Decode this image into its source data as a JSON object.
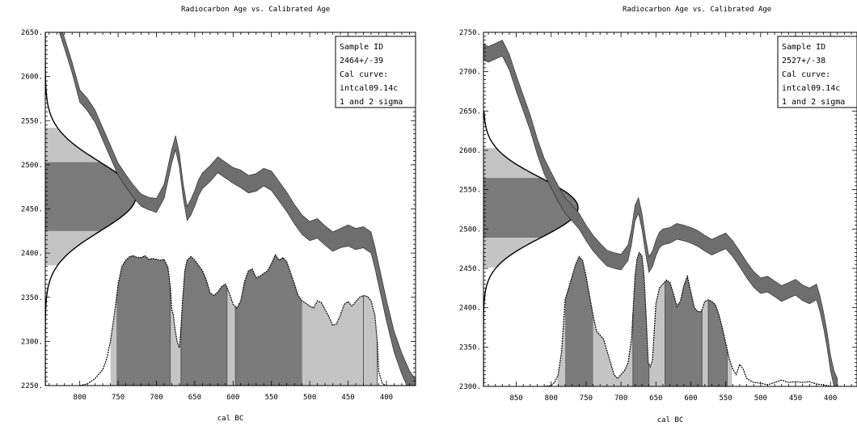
{
  "chart_data": [
    {
      "type": "area",
      "title": "Radiocarbon Age vs. Calibrated Age",
      "xlabel": "cal BC",
      "ylabel": "",
      "xlim": [
        845,
        362
      ],
      "ylim": [
        2250,
        2650
      ],
      "xticks": [
        800,
        750,
        700,
        650,
        600,
        550,
        500,
        450,
        400
      ],
      "yticks": [
        2250,
        2300,
        2350,
        2400,
        2450,
        2500,
        2550,
        2600,
        2650
      ],
      "ytick_labels": [
        "2250.",
        "2300.",
        "2350.",
        "2400.",
        "2450.",
        "2500.",
        "2550.",
        "2600.",
        "2650."
      ],
      "legend": {
        "placement": "top-right",
        "lines": [
          "Sample ID",
          "2464+/-39",
          "Cal curve:",
          "intcal09.14c",
          "1 and 2 sigma"
        ]
      },
      "radiocarbon_age": {
        "mean": 2464,
        "sigma": 39
      },
      "calibration_curve": {
        "x": [
          845,
          840,
          830,
          820,
          810,
          800,
          790,
          780,
          770,
          760,
          750,
          740,
          730,
          720,
          710,
          700,
          690,
          680,
          675,
          670,
          665,
          660,
          655,
          650,
          645,
          640,
          630,
          620,
          610,
          600,
          590,
          580,
          570,
          560,
          550,
          540,
          530,
          520,
          510,
          500,
          490,
          480,
          470,
          460,
          450,
          440,
          430,
          420,
          415,
          410,
          400,
          390,
          380,
          370,
          362
        ],
        "mid": [
          2705,
          2690,
          2665,
          2638,
          2610,
          2578,
          2568,
          2555,
          2535,
          2515,
          2495,
          2482,
          2470,
          2460,
          2456,
          2454,
          2470,
          2510,
          2525,
          2505,
          2470,
          2445,
          2452,
          2462,
          2474,
          2482,
          2490,
          2500,
          2494,
          2488,
          2484,
          2478,
          2480,
          2486,
          2482,
          2470,
          2458,
          2444,
          2432,
          2425,
          2428,
          2420,
          2413,
          2417,
          2420,
          2416,
          2418,
          2412,
          2395,
          2375,
          2335,
          2300,
          2275,
          2255,
          2245
        ],
        "halfwidth": [
          6,
          6,
          6,
          6,
          6,
          7,
          7,
          7,
          7,
          7,
          7,
          7,
          7,
          7,
          7,
          8,
          8,
          8,
          8,
          8,
          8,
          8,
          9,
          9,
          9,
          9,
          9,
          9,
          9,
          9,
          10,
          10,
          10,
          10,
          11,
          11,
          11,
          11,
          11,
          11,
          11,
          11,
          11,
          11,
          12,
          12,
          12,
          12,
          12,
          12,
          12,
          12,
          12,
          12,
          12
        ]
      },
      "probability_distribution": {
        "x": [
          800,
          790,
          780,
          770,
          765,
          760,
          755,
          752,
          750,
          745,
          740,
          735,
          730,
          725,
          720,
          715,
          710,
          705,
          700,
          695,
          690,
          685,
          682,
          680,
          678,
          676,
          673,
          670,
          668,
          666,
          663,
          660,
          655,
          650,
          645,
          640,
          635,
          630,
          625,
          620,
          615,
          610,
          605,
          600,
          595,
          590,
          585,
          580,
          575,
          570,
          565,
          560,
          555,
          550,
          545,
          540,
          535,
          530,
          525,
          520,
          515,
          510,
          505,
          500,
          495,
          490,
          485,
          480,
          475,
          470,
          465,
          460,
          455,
          450,
          445,
          440,
          435,
          430,
          425,
          420,
          415,
          412,
          410,
          405,
          400,
          395,
          390,
          380,
          370
        ],
        "y": [
          2250,
          2252,
          2258,
          2268,
          2280,
          2300,
          2330,
          2350,
          2365,
          2385,
          2392,
          2396,
          2397,
          2395,
          2395,
          2397,
          2393,
          2394,
          2393,
          2392,
          2393,
          2384,
          2362,
          2336,
          2330,
          2315,
          2300,
          2293,
          2315,
          2345,
          2380,
          2392,
          2396,
          2392,
          2386,
          2380,
          2370,
          2355,
          2352,
          2356,
          2362,
          2365,
          2355,
          2342,
          2338,
          2346,
          2368,
          2380,
          2382,
          2372,
          2374,
          2377,
          2380,
          2388,
          2398,
          2392,
          2395,
          2390,
          2378,
          2365,
          2352,
          2346,
          2343,
          2340,
          2338,
          2346,
          2344,
          2336,
          2328,
          2318,
          2320,
          2330,
          2342,
          2345,
          2340,
          2345,
          2350,
          2352,
          2351,
          2346,
          2330,
          2300,
          2265,
          2252,
          2250,
          2250,
          2250,
          2250,
          2250
        ],
        "one_sigma_ranges": [
          [
            752,
            682
          ],
          [
            668,
            608
          ],
          [
            597,
            510
          ]
        ],
        "two_sigma_ranges": [
          [
            760,
            412
          ]
        ],
        "marker_lines": [
          682,
          668,
          608,
          597,
          430,
          412
        ]
      },
      "gaussian": {
        "mean": 2464,
        "sigma": 39,
        "extent": [
          2250,
          2650
        ],
        "one_sigma_band": [
          2425,
          2503
        ],
        "two_sigma_band": [
          2386,
          2542
        ]
      }
    },
    {
      "type": "area",
      "title": "Radiocarbon Age vs. Calibrated Age",
      "xlabel": "cal BC",
      "ylabel": "",
      "xlim": [
        897,
        362
      ],
      "ylim": [
        2300,
        2750
      ],
      "xticks": [
        850,
        800,
        750,
        700,
        650,
        600,
        550,
        500,
        450,
        400
      ],
      "yticks": [
        2300,
        2350,
        2400,
        2450,
        2500,
        2550,
        2600,
        2650,
        2700,
        2750
      ],
      "ytick_labels": [
        "2300.",
        "2350.",
        "2400.",
        "2450.",
        "2500.",
        "2550.",
        "2600.",
        "2650.",
        "2700.",
        "2750."
      ],
      "legend": {
        "placement": "top-right",
        "lines": [
          "Sample ID",
          "2527+/-38",
          "Cal curve:",
          "intcal09.14c",
          "1 and 2 sigma"
        ]
      },
      "radiocarbon_age": {
        "mean": 2527,
        "sigma": 38
      },
      "calibration_curve": {
        "x": [
          897,
          890,
          880,
          870,
          860,
          850,
          840,
          830,
          820,
          810,
          800,
          790,
          780,
          770,
          760,
          750,
          740,
          730,
          720,
          710,
          700,
          690,
          685,
          680,
          675,
          670,
          665,
          660,
          655,
          650,
          645,
          640,
          630,
          620,
          610,
          600,
          590,
          580,
          570,
          560,
          550,
          540,
          530,
          520,
          510,
          500,
          490,
          480,
          470,
          460,
          450,
          440,
          430,
          420,
          415,
          410,
          405,
          400,
          395,
          390
        ],
        "mid": [
          2725,
          2722,
          2726,
          2730,
          2712,
          2685,
          2660,
          2635,
          2605,
          2580,
          2562,
          2545,
          2530,
          2520,
          2510,
          2495,
          2482,
          2472,
          2463,
          2460,
          2458,
          2470,
          2490,
          2520,
          2530,
          2510,
          2480,
          2455,
          2462,
          2476,
          2486,
          2490,
          2492,
          2497,
          2495,
          2492,
          2488,
          2482,
          2477,
          2481,
          2485,
          2475,
          2462,
          2448,
          2436,
          2428,
          2430,
          2424,
          2418,
          2422,
          2426,
          2419,
          2415,
          2420,
          2405,
          2385,
          2360,
          2330,
          2310,
          2300
        ],
        "halfwidth": [
          10,
          10,
          10,
          10,
          10,
          10,
          10,
          10,
          10,
          10,
          10,
          10,
          10,
          10,
          10,
          10,
          10,
          10,
          10,
          10,
          10,
          10,
          10,
          10,
          10,
          10,
          10,
          10,
          10,
          10,
          10,
          10,
          10,
          10,
          10,
          10,
          10,
          10,
          10,
          10,
          10,
          10,
          10,
          10,
          10,
          10,
          10,
          10,
          10,
          10,
          10,
          10,
          10,
          10,
          10,
          10,
          10,
          10,
          10,
          10
        ]
      },
      "probability_distribution": {
        "x": [
          810,
          800,
          795,
          790,
          785,
          780,
          775,
          770,
          765,
          760,
          755,
          750,
          745,
          740,
          735,
          730,
          725,
          720,
          715,
          710,
          705,
          700,
          695,
          690,
          685,
          680,
          677,
          674,
          670,
          667,
          664,
          661,
          658,
          655,
          650,
          645,
          640,
          635,
          630,
          625,
          620,
          615,
          610,
          605,
          600,
          595,
          590,
          585,
          580,
          575,
          570,
          565,
          560,
          555,
          550,
          545,
          540,
          535,
          530,
          525,
          520,
          510,
          500,
          490,
          480,
          470,
          460,
          450,
          440,
          430,
          420,
          410,
          400,
          390
        ],
        "y": [
          2300,
          2301,
          2305,
          2315,
          2345,
          2410,
          2425,
          2440,
          2455,
          2465,
          2460,
          2440,
          2415,
          2390,
          2370,
          2365,
          2360,
          2345,
          2330,
          2315,
          2310,
          2315,
          2320,
          2330,
          2360,
          2440,
          2462,
          2470,
          2466,
          2440,
          2390,
          2330,
          2325,
          2334,
          2405,
          2425,
          2430,
          2435,
          2432,
          2418,
          2402,
          2408,
          2428,
          2440,
          2420,
          2400,
          2395,
          2395,
          2408,
          2410,
          2408,
          2404,
          2392,
          2375,
          2355,
          2335,
          2322,
          2315,
          2328,
          2322,
          2310,
          2305,
          2304,
          2302,
          2305,
          2308,
          2305,
          2306,
          2305,
          2306,
          2303,
          2302,
          2300,
          2300
        ],
        "one_sigma_ranges": [
          [
            780,
            740
          ],
          [
            683,
            660
          ],
          [
            637,
            584
          ],
          [
            575,
            548
          ]
        ],
        "two_sigma_ranges": [
          [
            791,
            541
          ]
        ],
        "marker_lines": [
          683,
          660,
          637,
          584,
          575,
          548
        ]
      },
      "gaussian": {
        "mean": 2527,
        "sigma": 38,
        "extent": [
          2300,
          2650
        ],
        "one_sigma_band": [
          2489,
          2565
        ],
        "two_sigma_band": [
          2451,
          2603
        ]
      }
    }
  ]
}
